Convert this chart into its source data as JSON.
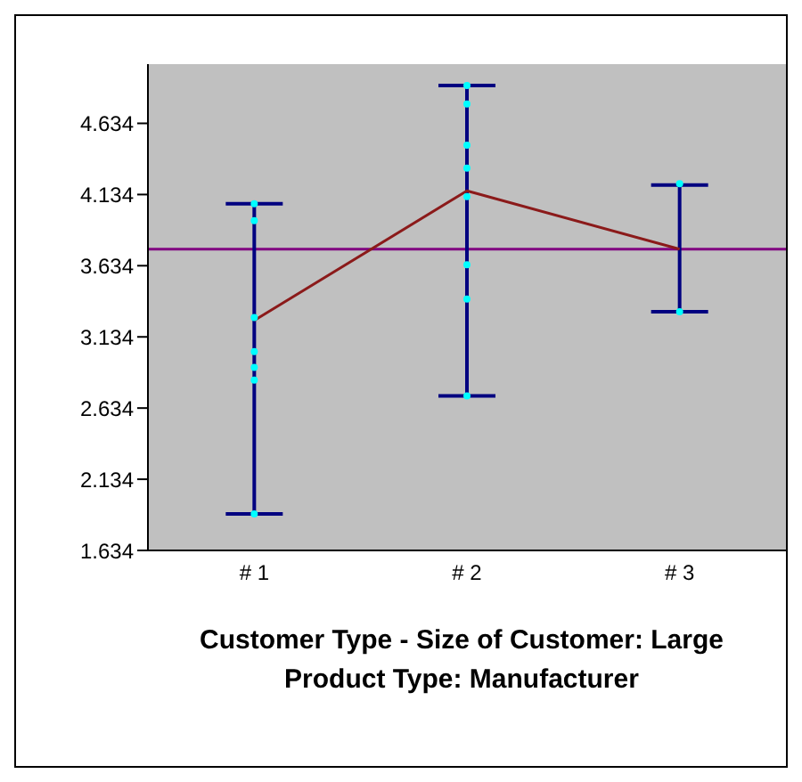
{
  "chart_data": {
    "type": "line",
    "xlabel": "Customer Type - Size of Customer: Large\nProduct Type: Manufacturer",
    "categories": [
      "# 1",
      "# 2",
      "# 3"
    ],
    "series": [
      {
        "color": "#8b1a1a",
        "values": [
          3.25,
          4.16,
          3.75
        ],
        "errors": [
          [
            1.89,
            4.07
          ],
          [
            2.72,
            4.9
          ],
          [
            3.31,
            4.2
          ]
        ]
      },
      {
        "type": "scatter",
        "color": "#00ffff",
        "x": [
          "# 1",
          "# 1",
          "# 1",
          "# 1",
          "# 1",
          "# 1",
          "# 1",
          "# 2",
          "# 2",
          "# 2",
          "# 2",
          "# 2",
          "# 2",
          "# 2",
          "# 2",
          "# 3",
          "# 3"
        ],
        "values": [
          4.07,
          3.95,
          3.27,
          3.03,
          2.92,
          2.83,
          1.89,
          4.9,
          4.77,
          4.48,
          4.32,
          4.12,
          3.64,
          3.4,
          2.72,
          4.21,
          3.31
        ]
      }
    ],
    "ylim": [
      1.634,
      5.05
    ],
    "yticks": [
      1.634,
      2.134,
      2.634,
      3.134,
      3.634,
      4.134,
      4.634
    ],
    "ref_lines": [
      {
        "axis": "y",
        "value": 3.75,
        "color": "#800080"
      }
    ],
    "legend": false
  }
}
